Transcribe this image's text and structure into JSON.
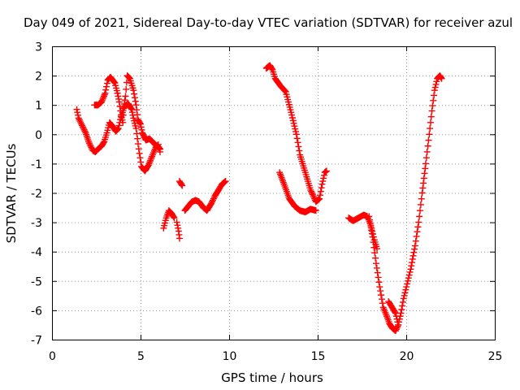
{
  "chart_data": {
    "type": "scatter",
    "title": "Day 049 of 2021, Sidereal Day-to-day VTEC variation (SDTVAR) for receiver azul",
    "xlabel": "GPS time / hours",
    "ylabel": "SDTVAR / TECUs",
    "xlim": [
      0,
      25
    ],
    "ylim": [
      -7,
      3
    ],
    "xticks": [
      0,
      5,
      10,
      15,
      20,
      25
    ],
    "yticks": [
      -7,
      -6,
      -5,
      -4,
      -3,
      -2,
      -1,
      0,
      1,
      2,
      3
    ],
    "grid": true,
    "marker": "+",
    "color": "#ff0000",
    "series": [
      {
        "name": "",
        "segments": [
          [
            [
              1.4,
              0.85
            ],
            [
              1.5,
              0.55
            ],
            [
              1.7,
              0.3
            ],
            [
              1.9,
              0.05
            ],
            [
              2.1,
              -0.3
            ],
            [
              2.3,
              -0.55
            ],
            [
              2.45,
              -0.6
            ],
            [
              2.6,
              -0.5
            ],
            [
              2.8,
              -0.4
            ],
            [
              2.95,
              -0.25
            ],
            [
              3.1,
              0.05
            ],
            [
              3.25,
              0.4
            ],
            [
              3.45,
              0.25
            ],
            [
              3.6,
              0.1
            ],
            [
              3.75,
              0.2
            ],
            [
              3.9,
              0.6
            ],
            [
              4.1,
              0.95
            ],
            [
              4.3,
              1.05
            ],
            [
              4.5,
              0.85
            ],
            [
              4.6,
              0.55
            ],
            [
              4.75,
              0.2
            ],
            [
              4.9,
              -0.5
            ],
            [
              5.05,
              -1.1
            ],
            [
              5.25,
              -1.25
            ],
            [
              5.45,
              -1.05
            ],
            [
              5.65,
              -0.75
            ],
            [
              5.85,
              -0.45
            ],
            [
              6.0,
              -0.35
            ],
            [
              6.1,
              -0.6
            ]
          ],
          [
            [
              2.4,
              1.0
            ],
            [
              2.6,
              1.0
            ],
            [
              2.8,
              1.1
            ],
            [
              3.0,
              1.4
            ],
            [
              3.15,
              1.85
            ],
            [
              3.3,
              1.95
            ],
            [
              3.55,
              1.75
            ],
            [
              3.7,
              1.4
            ],
            [
              3.8,
              1.1
            ],
            [
              3.9,
              0.65
            ],
            [
              4.0,
              0.4
            ],
            [
              4.05,
              0.9
            ],
            [
              4.15,
              1.3
            ],
            [
              4.25,
              2.0
            ],
            [
              4.4,
              1.9
            ],
            [
              4.6,
              1.5
            ],
            [
              4.75,
              1.0
            ],
            [
              4.85,
              0.5
            ],
            [
              5.0,
              0.35
            ],
            [
              5.1,
              0.05
            ],
            [
              5.3,
              -0.2
            ],
            [
              5.5,
              -0.15
            ],
            [
              5.75,
              -0.3
            ],
            [
              6.0,
              -0.45
            ],
            [
              6.1,
              -0.5
            ]
          ],
          [
            [
              6.3,
              -3.2
            ],
            [
              6.45,
              -2.85
            ],
            [
              6.6,
              -2.6
            ],
            [
              6.75,
              -2.7
            ],
            [
              6.9,
              -2.85
            ]
          ],
          [
            [
              7.05,
              -3.0
            ],
            [
              7.15,
              -3.3
            ],
            [
              7.2,
              -3.55
            ]
          ],
          [
            [
              7.2,
              -1.6
            ],
            [
              7.35,
              -1.75
            ]
          ],
          [
            [
              7.5,
              -2.6
            ],
            [
              7.7,
              -2.45
            ],
            [
              7.9,
              -2.3
            ],
            [
              8.1,
              -2.25
            ],
            [
              8.3,
              -2.3
            ],
            [
              8.55,
              -2.5
            ],
            [
              8.75,
              -2.6
            ],
            [
              9.0,
              -2.35
            ],
            [
              9.2,
              -2.1
            ],
            [
              9.4,
              -1.9
            ],
            [
              9.6,
              -1.7
            ],
            [
              9.8,
              -1.6
            ]
          ],
          [
            [
              12.1,
              2.25
            ],
            [
              12.3,
              2.35
            ],
            [
              12.45,
              2.2
            ],
            [
              12.6,
              1.9
            ],
            [
              12.9,
              1.65
            ],
            [
              13.2,
              1.45
            ],
            [
              13.5,
              0.75
            ],
            [
              13.8,
              0.0
            ],
            [
              14.0,
              -0.7
            ],
            [
              14.3,
              -1.3
            ],
            [
              14.6,
              -1.9
            ],
            [
              14.9,
              -2.3
            ],
            [
              15.1,
              -2.2
            ],
            [
              15.25,
              -1.7
            ],
            [
              15.4,
              -1.3
            ],
            [
              15.5,
              -1.25
            ]
          ],
          [
            [
              12.85,
              -1.3
            ],
            [
              13.1,
              -1.7
            ],
            [
              13.4,
              -2.2
            ],
            [
              13.7,
              -2.45
            ],
            [
              14.0,
              -2.6
            ],
            [
              14.3,
              -2.65
            ],
            [
              14.6,
              -2.55
            ],
            [
              14.9,
              -2.6
            ]
          ],
          [
            [
              16.75,
              -2.85
            ],
            [
              17.0,
              -2.95
            ],
            [
              17.3,
              -2.85
            ],
            [
              17.6,
              -2.75
            ],
            [
              17.8,
              -2.8
            ],
            [
              18.0,
              -3.1
            ],
            [
              18.2,
              -3.6
            ],
            [
              18.35,
              -3.9
            ]
          ],
          [
            [
              17.9,
              -2.8
            ],
            [
              18.1,
              -3.5
            ],
            [
              18.3,
              -4.4
            ],
            [
              18.5,
              -5.2
            ],
            [
              18.7,
              -5.9
            ],
            [
              18.9,
              -6.2
            ],
            [
              19.05,
              -6.45
            ],
            [
              19.2,
              -6.6
            ],
            [
              19.4,
              -6.7
            ],
            [
              19.55,
              -6.5
            ],
            [
              19.7,
              -6.1
            ],
            [
              19.85,
              -5.6
            ],
            [
              20.05,
              -5.1
            ],
            [
              20.25,
              -4.6
            ],
            [
              20.5,
              -3.8
            ],
            [
              20.7,
              -3.0
            ],
            [
              20.9,
              -2.0
            ],
            [
              21.1,
              -1.0
            ],
            [
              21.3,
              0.0
            ],
            [
              21.45,
              0.8
            ],
            [
              21.6,
              1.5
            ],
            [
              21.75,
              1.9
            ],
            [
              21.9,
              2.0
            ],
            [
              22.0,
              1.9
            ]
          ],
          [
            [
              19.0,
              -5.7
            ],
            [
              19.2,
              -5.9
            ],
            [
              19.4,
              -6.1
            ],
            [
              19.55,
              -6.5
            ]
          ]
        ]
      }
    ]
  }
}
